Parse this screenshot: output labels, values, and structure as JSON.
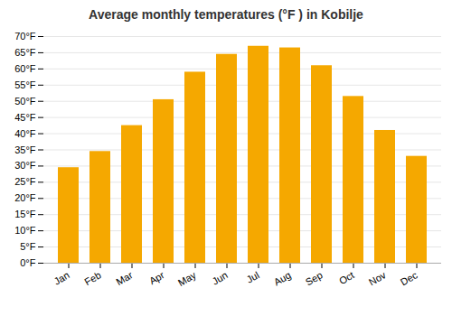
{
  "chart_data": {
    "type": "bar",
    "title": "Average monthly temperatures (°F ) in Kobilje",
    "categories": [
      "Jan",
      "Feb",
      "Mar",
      "Apr",
      "May",
      "Jun",
      "Jul",
      "Aug",
      "Sep",
      "Oct",
      "Nov",
      "Dec"
    ],
    "values": [
      29.5,
      34.5,
      42.5,
      50.5,
      59.0,
      64.5,
      67.0,
      66.5,
      61.0,
      51.5,
      41.0,
      33.0
    ],
    "color": "#F5A800",
    "ylim": [
      0,
      70
    ],
    "yticks": [
      {
        "value": 0,
        "label": "0°F"
      },
      {
        "value": 5,
        "label": "5°F"
      },
      {
        "value": 10,
        "label": "10°F"
      },
      {
        "value": 15,
        "label": "15°F"
      },
      {
        "value": 20,
        "label": "20°F"
      },
      {
        "value": 25,
        "label": "25°F"
      },
      {
        "value": 30,
        "label": "30°F"
      },
      {
        "value": 35,
        "label": "35°F"
      },
      {
        "value": 40,
        "label": "40°F"
      },
      {
        "value": 45,
        "label": "45°F"
      },
      {
        "value": 50,
        "label": "50°F"
      },
      {
        "value": 55,
        "label": "55°F"
      },
      {
        "value": 60,
        "label": "60°F"
      },
      {
        "value": 65,
        "label": "65°F"
      },
      {
        "value": 70,
        "label": "70°F"
      }
    ],
    "grid": true
  }
}
